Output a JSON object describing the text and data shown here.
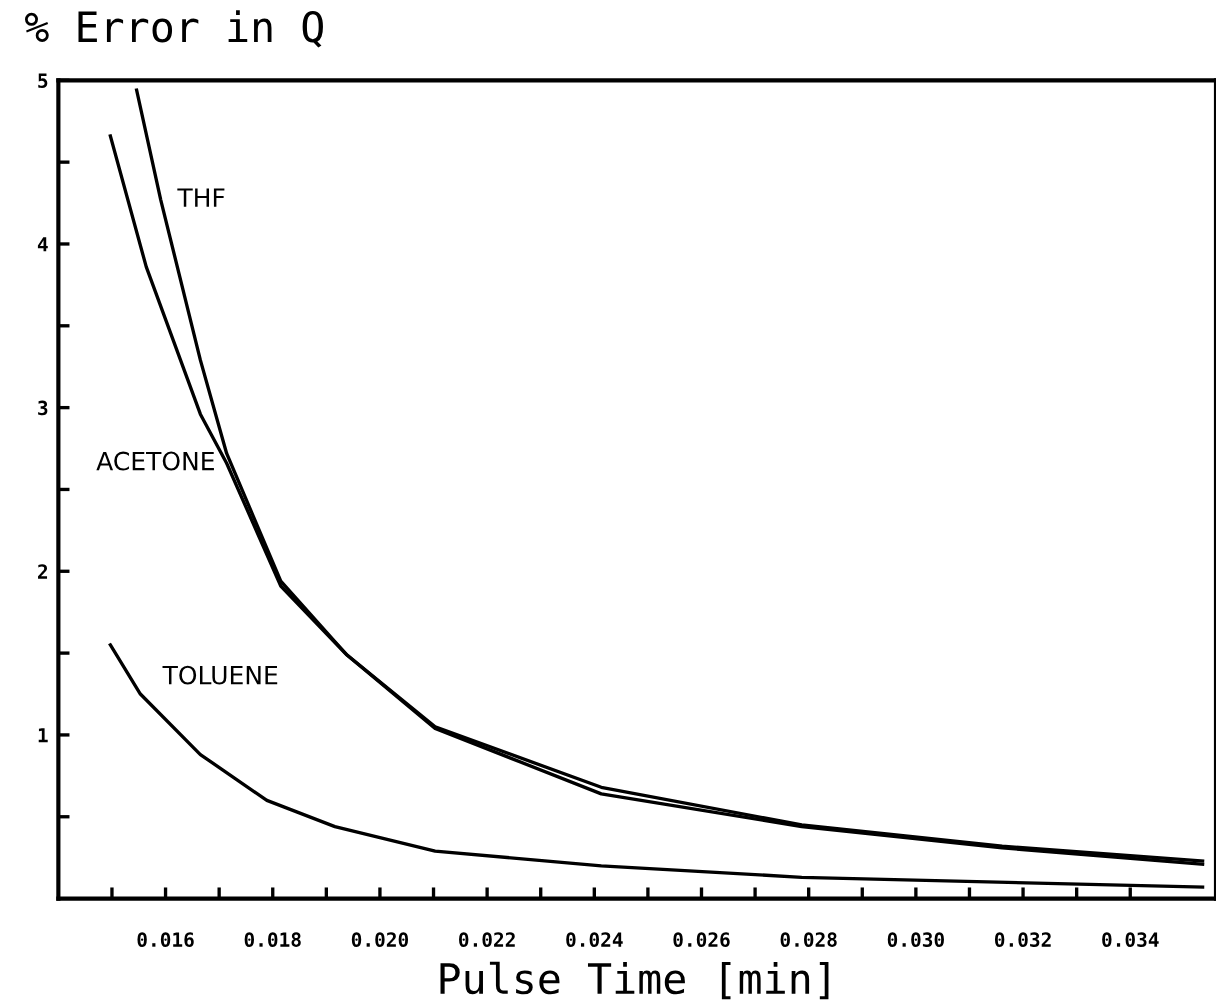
{
  "chart_data": {
    "type": "line",
    "ylabel": "% Error in Q",
    "xlabel": "Pulse Time [min]",
    "xlim": [
      0.014,
      0.0356
    ],
    "ylim": [
      0,
      5
    ],
    "xticks": [
      {
        "value": 0.015,
        "label": null
      },
      {
        "value": 0.016,
        "label": "0.016"
      },
      {
        "value": 0.017,
        "label": null
      },
      {
        "value": 0.018,
        "label": "0.018"
      },
      {
        "value": 0.019,
        "label": null
      },
      {
        "value": 0.02,
        "label": "0.020"
      },
      {
        "value": 0.021,
        "label": null
      },
      {
        "value": 0.022,
        "label": "0.022"
      },
      {
        "value": 0.023,
        "label": null
      },
      {
        "value": 0.024,
        "label": "0.024"
      },
      {
        "value": 0.025,
        "label": null
      },
      {
        "value": 0.026,
        "label": "0.026"
      },
      {
        "value": 0.027,
        "label": null
      },
      {
        "value": 0.028,
        "label": "0.028"
      },
      {
        "value": 0.029,
        "label": null
      },
      {
        "value": 0.03,
        "label": "0.030"
      },
      {
        "value": 0.031,
        "label": null
      },
      {
        "value": 0.032,
        "label": "0.032"
      },
      {
        "value": 0.033,
        "label": null
      },
      {
        "value": 0.034,
        "label": "0.034"
      }
    ],
    "yticks": [
      {
        "value": 0.5,
        "label": null
      },
      1,
      {
        "value": 1.5,
        "label": null
      },
      2,
      {
        "value": 2.5,
        "label": null
      },
      3,
      {
        "value": 3.5,
        "label": null
      },
      4,
      {
        "value": 4.5,
        "label": null
      },
      5
    ],
    "grid": false,
    "legend": false,
    "marker": "none",
    "line_style": "solid",
    "series": [
      {
        "name": "THF",
        "color": "#000000",
        "x": [
          0.01546,
          0.01591,
          0.01665,
          0.01714,
          0.01815,
          0.01938,
          0.02103,
          0.02413,
          0.02787,
          0.03161,
          0.03535
        ],
        "values": [
          4.94,
          4.27,
          3.29,
          2.72,
          1.94,
          1.49,
          1.05,
          0.68,
          0.45,
          0.32,
          0.23
        ]
      },
      {
        "name": "ACETONE",
        "color": "#000000",
        "x": [
          0.01497,
          0.01564,
          0.01665,
          0.01714,
          0.01815,
          0.01938,
          0.02103,
          0.02413,
          0.02787,
          0.03161,
          0.03535
        ],
        "values": [
          4.66,
          3.86,
          2.96,
          2.66,
          1.91,
          1.49,
          1.04,
          0.64,
          0.44,
          0.31,
          0.21
        ]
      },
      {
        "name": "TOLUENE",
        "color": "#000000",
        "x": [
          0.01497,
          0.01553,
          0.01665,
          0.01789,
          0.01916,
          0.02103,
          0.02413,
          0.02787,
          0.03535
        ],
        "values": [
          1.55,
          1.25,
          0.88,
          0.6,
          0.44,
          0.29,
          0.2,
          0.13,
          0.07
        ]
      }
    ]
  }
}
